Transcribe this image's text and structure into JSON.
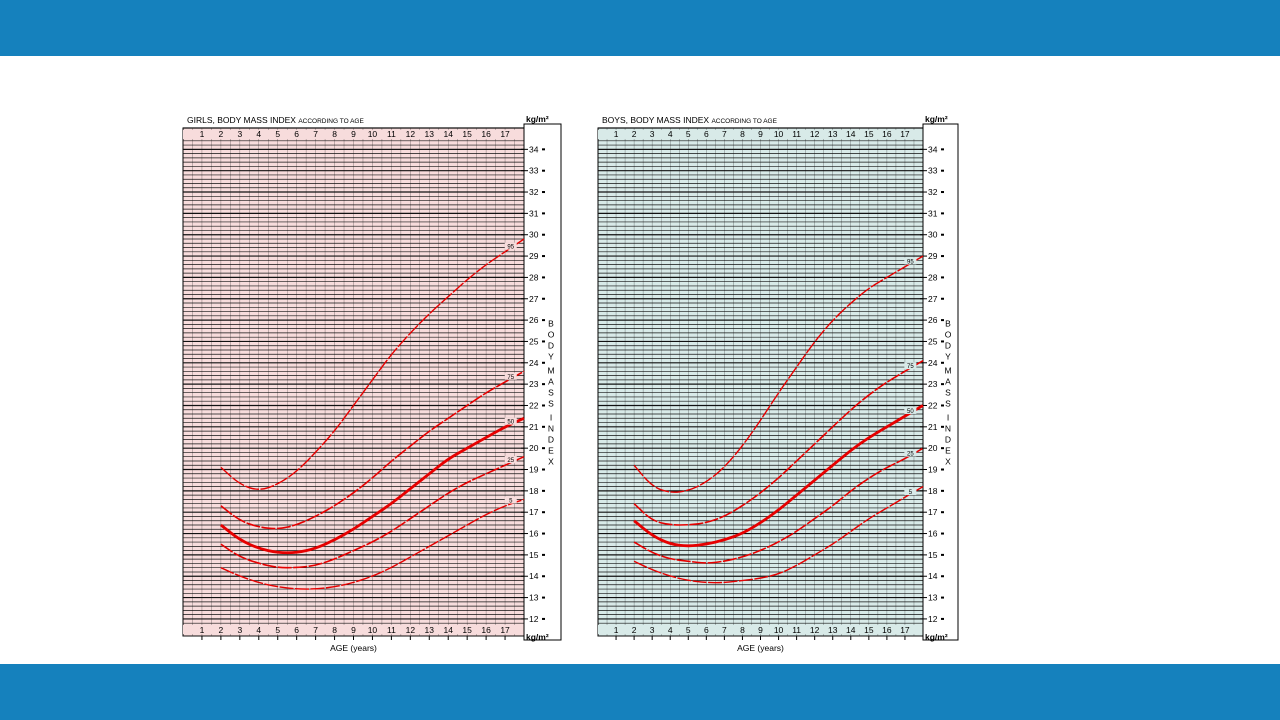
{
  "colors": {
    "band": "#1581bd",
    "curve": "#e60000",
    "girls_bg": "#f7dcdc",
    "boys_bg": "#d8eae8",
    "grid": "#111111"
  },
  "chart_data": [
    {
      "type": "line",
      "title": "GIRLS, BODY MASS INDEX",
      "title_suffix": "ACCORDING TO AGE",
      "xlabel": "AGE (years)",
      "ylabel": "BODY MASS INDEX",
      "y_unit": "kg/m²",
      "x_ticks": [
        "1",
        "2",
        "3",
        "4",
        "5",
        "6",
        "7",
        "8",
        "9",
        "10",
        "11",
        "12",
        "13",
        "14",
        "15",
        "16",
        "17"
      ],
      "y_ticks": [
        "12",
        "13",
        "14",
        "15",
        "16",
        "17",
        "18",
        "19",
        "20",
        "21",
        "22",
        "23",
        "24",
        "25",
        "26",
        "27",
        "28",
        "29",
        "30",
        "31",
        "32",
        "33",
        "34"
      ],
      "xlim": [
        0,
        18
      ],
      "ylim": [
        11.2,
        35
      ],
      "grid": true,
      "series": [
        {
          "name": "95",
          "x": [
            2,
            3,
            4,
            5,
            6,
            7,
            8,
            9,
            10,
            11,
            12,
            13,
            14,
            15,
            16,
            17,
            18
          ],
          "y": [
            19.1,
            18.3,
            18.0,
            18.3,
            18.9,
            19.8,
            20.8,
            22.0,
            23.2,
            24.4,
            25.4,
            26.3,
            27.1,
            27.9,
            28.6,
            29.2,
            29.8
          ]
        },
        {
          "name": "75",
          "x": [
            2,
            3,
            4,
            5,
            6,
            7,
            8,
            9,
            10,
            11,
            12,
            13,
            14,
            15,
            16,
            17,
            18
          ],
          "y": [
            17.3,
            16.6,
            16.3,
            16.2,
            16.4,
            16.8,
            17.3,
            17.9,
            18.6,
            19.4,
            20.1,
            20.8,
            21.4,
            22.0,
            22.6,
            23.1,
            23.6
          ]
        },
        {
          "name": "50",
          "x": [
            2,
            3,
            4,
            5,
            6,
            7,
            8,
            9,
            10,
            11,
            12,
            13,
            14,
            15,
            16,
            17,
            18
          ],
          "y": [
            16.4,
            15.7,
            15.3,
            15.1,
            15.1,
            15.3,
            15.7,
            16.2,
            16.8,
            17.4,
            18.1,
            18.8,
            19.5,
            20.0,
            20.5,
            21.0,
            21.4
          ]
        },
        {
          "name": "25",
          "x": [
            2,
            3,
            4,
            5,
            6,
            7,
            8,
            9,
            10,
            11,
            12,
            13,
            14,
            15,
            16,
            17,
            18
          ],
          "y": [
            15.5,
            14.9,
            14.6,
            14.4,
            14.4,
            14.5,
            14.8,
            15.2,
            15.6,
            16.1,
            16.7,
            17.3,
            17.9,
            18.4,
            18.8,
            19.2,
            19.6
          ]
        },
        {
          "name": "5",
          "x": [
            2,
            3,
            4,
            5,
            6,
            7,
            8,
            9,
            10,
            11,
            12,
            13,
            14,
            15,
            16,
            17,
            18
          ],
          "y": [
            14.4,
            14.0,
            13.7,
            13.5,
            13.4,
            13.4,
            13.5,
            13.7,
            14.0,
            14.4,
            14.9,
            15.4,
            15.9,
            16.4,
            16.9,
            17.3,
            17.6
          ]
        }
      ]
    },
    {
      "type": "line",
      "title": "BOYS, BODY MASS INDEX",
      "title_suffix": "ACCORDING TO AGE",
      "xlabel": "AGE (years)",
      "ylabel": "BODY MASS INDEX",
      "y_unit": "kg/m²",
      "x_ticks": [
        "1",
        "2",
        "3",
        "4",
        "5",
        "6",
        "7",
        "8",
        "9",
        "10",
        "11",
        "12",
        "13",
        "14",
        "15",
        "16",
        "17"
      ],
      "y_ticks": [
        "12",
        "13",
        "14",
        "15",
        "16",
        "17",
        "18",
        "19",
        "20",
        "21",
        "22",
        "23",
        "24",
        "25",
        "26",
        "27",
        "28",
        "29",
        "30",
        "31",
        "32",
        "33",
        "34"
      ],
      "xlim": [
        0,
        18
      ],
      "ylim": [
        11.2,
        35
      ],
      "grid": true,
      "series": [
        {
          "name": "95",
          "x": [
            2,
            3,
            4,
            5,
            6,
            7,
            8,
            9,
            10,
            11,
            12,
            13,
            14,
            15,
            16,
            17,
            18
          ],
          "y": [
            19.2,
            18.2,
            17.9,
            18.0,
            18.4,
            19.1,
            20.1,
            21.3,
            22.6,
            23.8,
            25.0,
            26.0,
            26.8,
            27.5,
            28.0,
            28.5,
            29.0
          ]
        },
        {
          "name": "75",
          "x": [
            2,
            3,
            4,
            5,
            6,
            7,
            8,
            9,
            10,
            11,
            12,
            13,
            14,
            15,
            16,
            17,
            18
          ],
          "y": [
            17.4,
            16.6,
            16.4,
            16.4,
            16.5,
            16.8,
            17.3,
            17.9,
            18.6,
            19.4,
            20.2,
            21.0,
            21.8,
            22.5,
            23.1,
            23.6,
            24.1
          ]
        },
        {
          "name": "50",
          "x": [
            2,
            3,
            4,
            5,
            6,
            7,
            8,
            9,
            10,
            11,
            12,
            13,
            14,
            15,
            16,
            17,
            18
          ],
          "y": [
            16.6,
            15.9,
            15.5,
            15.4,
            15.5,
            15.7,
            16.0,
            16.5,
            17.1,
            17.8,
            18.5,
            19.2,
            19.9,
            20.5,
            21.0,
            21.5,
            22.0
          ]
        },
        {
          "name": "25",
          "x": [
            2,
            3,
            4,
            5,
            6,
            7,
            8,
            9,
            10,
            11,
            12,
            13,
            14,
            15,
            16,
            17,
            18
          ],
          "y": [
            15.6,
            15.1,
            14.8,
            14.7,
            14.6,
            14.7,
            14.9,
            15.2,
            15.6,
            16.1,
            16.7,
            17.3,
            18.0,
            18.6,
            19.1,
            19.5,
            20.0
          ]
        },
        {
          "name": "5",
          "x": [
            2,
            3,
            4,
            5,
            6,
            7,
            8,
            9,
            10,
            11,
            12,
            13,
            14,
            15,
            16,
            17,
            18
          ],
          "y": [
            14.7,
            14.3,
            14.0,
            13.8,
            13.7,
            13.7,
            13.8,
            13.9,
            14.1,
            14.5,
            15.0,
            15.5,
            16.1,
            16.7,
            17.2,
            17.7,
            18.2
          ]
        }
      ]
    }
  ]
}
